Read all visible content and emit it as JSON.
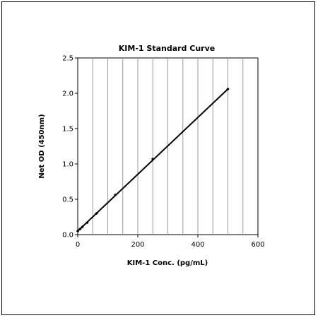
{
  "chart_data": {
    "type": "scatter",
    "title": "KIM-1 Standard Curve",
    "xlabel": "KIM-1 Conc. (pg/mL)",
    "ylabel": "Net OD (450nm)",
    "xlim": [
      0,
      600
    ],
    "ylim": [
      0,
      2.5
    ],
    "x_ticks": [
      "0",
      "200",
      "400",
      "600"
    ],
    "y_ticks": [
      "0.0",
      "0.5",
      "1.0",
      "1.5",
      "2.0",
      "2.5"
    ],
    "grid": "vertical",
    "legend": "none",
    "series": [
      {
        "points": [
          {
            "x": 0,
            "y": 0.05
          },
          {
            "x": 7.8,
            "y": 0.08
          },
          {
            "x": 15.6,
            "y": 0.11
          },
          {
            "x": 31.3,
            "y": 0.17
          },
          {
            "x": 62.5,
            "y": 0.3
          },
          {
            "x": 125,
            "y": 0.56
          },
          {
            "x": 250,
            "y": 1.07
          },
          {
            "x": 500,
            "y": 2.06
          }
        ],
        "fit_line": {
          "x": [
            0,
            500
          ],
          "y": [
            0.05,
            2.06
          ]
        },
        "color": "#000000"
      }
    ]
  }
}
